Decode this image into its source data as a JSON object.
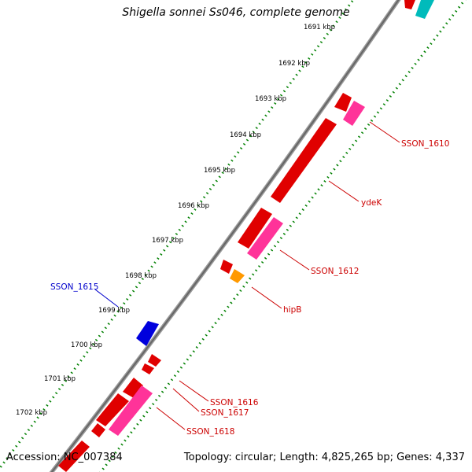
{
  "title": "Shigella sonnei Ss046, complete genome",
  "footer": {
    "accession": "Accession: NC_007384",
    "summary": "Topology: circular; Length: 4,825,265 bp; Genes: 4,337"
  },
  "ticks": [
    "1691 kbp",
    "1692 kbp",
    "1693 kbp",
    "1694 kbp",
    "1695 kbp",
    "1696 kbp",
    "1697 kbp",
    "1698 kbp",
    "1699 kbp",
    "1700 kbp",
    "1701 kbp",
    "1702 kbp"
  ],
  "gene_labels": [
    {
      "id": "ssnon-1610",
      "text": "SSON_1610",
      "color": "#cc0000"
    },
    {
      "id": "ydek",
      "text": "ydeK",
      "color": "#cc0000"
    },
    {
      "id": "sson-1612",
      "text": "SSON_1612",
      "color": "#cc0000"
    },
    {
      "id": "hipb",
      "text": "hipB",
      "color": "#cc0000"
    },
    {
      "id": "sson-1615",
      "text": "SSON_1615",
      "color": "#0000cc"
    },
    {
      "id": "sson-1616",
      "text": "SSON_1616",
      "color": "#cc0000"
    },
    {
      "id": "sson-1617",
      "text": "SSON_1617",
      "color": "#cc0000"
    },
    {
      "id": "sson-1618",
      "text": "SSON_1618",
      "color": "#cc0000"
    }
  ],
  "colors": {
    "backbone": "#808080",
    "tick_ring": "#008000",
    "cds_forward": "#ff0000",
    "cds_reverse": "#0000ff",
    "rna": "#ff3399",
    "other": "#ff9900",
    "teal": "#00cccc"
  }
}
